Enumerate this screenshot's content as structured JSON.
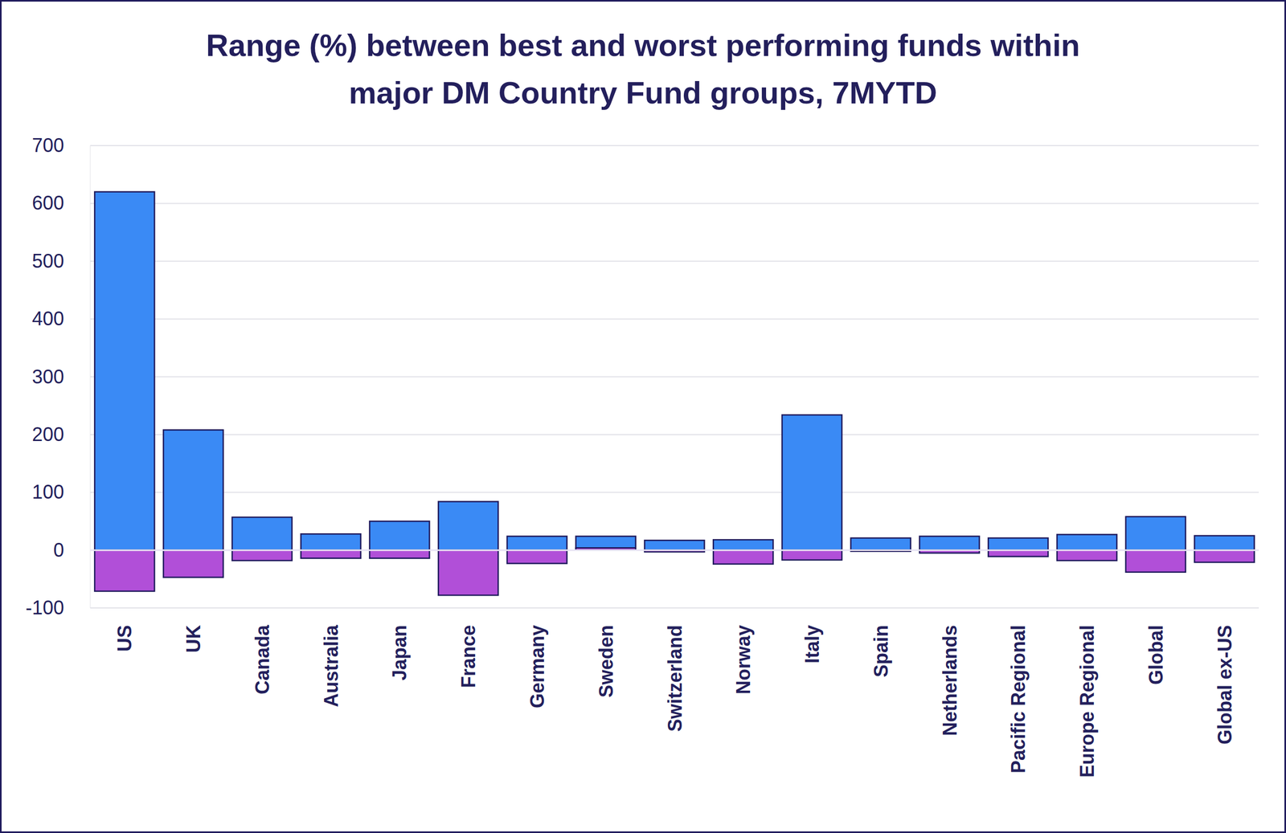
{
  "chart_data": {
    "type": "bar",
    "title": "Range (%) between best and worst performing funds within major DM Country Fund groups, 7MYTD",
    "categories": [
      "US",
      "UK",
      "Canada",
      "Australia",
      "Japan",
      "France",
      "Germany",
      "Sweden",
      "Switzerland",
      "Norway",
      "Italy",
      "Spain",
      "Netherlands",
      "Pacific Regional",
      "Europe Regional",
      "Global",
      "Global ex-US"
    ],
    "series": [
      {
        "color": "#3a8af5",
        "values": [
          620,
          208,
          57,
          28,
          50,
          84,
          24,
          24,
          17,
          18,
          234,
          21,
          24,
          21,
          27,
          58,
          25
        ]
      },
      {
        "color": "#b14fd8",
        "values": [
          -71,
          -47,
          -18,
          -14,
          -14,
          -78,
          -23,
          4,
          -3,
          -24,
          -17,
          -2,
          -5,
          -11,
          -18,
          -38,
          -21
        ]
      }
    ],
    "ylim": [
      -100,
      700
    ],
    "yticks": [
      -100,
      0,
      100,
      200,
      300,
      400,
      500,
      600,
      700
    ],
    "grid": true
  }
}
